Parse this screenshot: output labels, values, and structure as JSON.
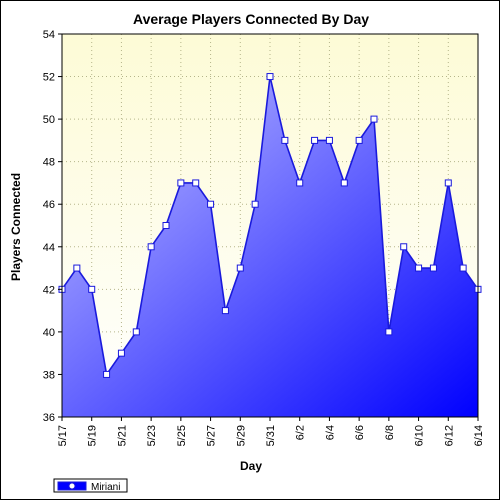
{
  "chart_data": {
    "type": "area",
    "title": "Average Players Connected By Day",
    "xlabel": "Day",
    "ylabel": "Players Connected",
    "ylim": [
      36,
      54
    ],
    "yticks": [
      36,
      38,
      40,
      42,
      44,
      46,
      48,
      50,
      52,
      54
    ],
    "xtick_labels": [
      "5/17",
      "5/19",
      "5/21",
      "5/23",
      "5/25",
      "5/27",
      "5/29",
      "5/31",
      "6/2",
      "6/4",
      "6/6",
      "6/8",
      "6/10",
      "6/12",
      "6/14"
    ],
    "x": [
      "5/17",
      "5/18",
      "5/19",
      "5/20",
      "5/21",
      "5/22",
      "5/23",
      "5/24",
      "5/25",
      "5/26",
      "5/27",
      "5/28",
      "5/29",
      "5/30",
      "5/31",
      "6/1",
      "6/2",
      "6/3",
      "6/4",
      "6/5",
      "6/6",
      "6/7",
      "6/8",
      "6/9",
      "6/10",
      "6/11",
      "6/12",
      "6/13",
      "6/14"
    ],
    "series": [
      {
        "name": "Miriani",
        "values": [
          42,
          43,
          42,
          38,
          39,
          40,
          44,
          45,
          47,
          47,
          46,
          41,
          43,
          46,
          52,
          49,
          47,
          49,
          49,
          47,
          49,
          50,
          40,
          44,
          43,
          43,
          47,
          43,
          42
        ]
      }
    ],
    "grid": true,
    "legend_position": "bottom-left",
    "colors": {
      "line": "#1a1adc",
      "area_light": "#c6c6ff",
      "area_dark": "#0000ff",
      "plot_bg_top": "#fdfbd6",
      "plot_bg_bottom": "#ffffff",
      "grid": "#b5b58a"
    }
  }
}
